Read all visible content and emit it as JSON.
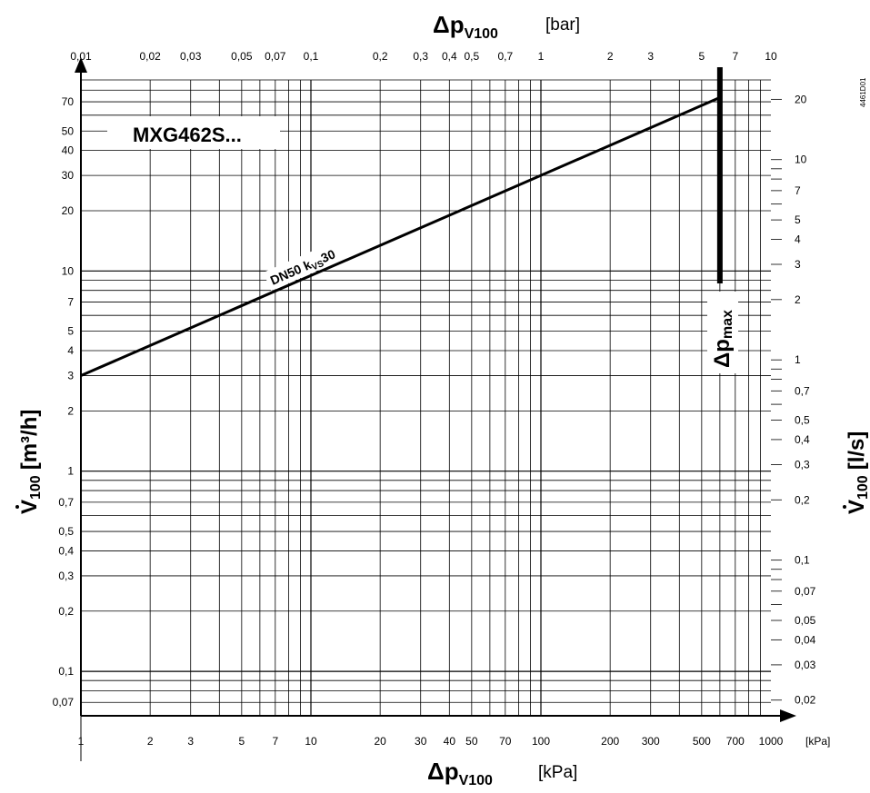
{
  "chart_data": {
    "type": "line",
    "product_label": "MXG462S...",
    "series": [
      {
        "name": "DN50 kVS30",
        "label_main": "DN50 k",
        "label_sub": "VS",
        "label_tail": "30",
        "x": [
          1,
          600
        ],
        "y": [
          3,
          73.5
        ]
      }
    ],
    "dp_max": {
      "x": 600,
      "label_main": "Δp",
      "label_sub": "max"
    },
    "x_axis_bottom": {
      "scale": "log",
      "range": [
        1,
        1000
      ],
      "symbol": "Δp",
      "subscript": "V100",
      "unit": "[kPa]",
      "tick_values": [
        1,
        2,
        3,
        5,
        7,
        10,
        20,
        30,
        40,
        50,
        70,
        100,
        200,
        300,
        500,
        700,
        1000
      ],
      "tick_labels": [
        "1",
        "2",
        "3",
        "5",
        "7",
        "10",
        "20",
        "30",
        "40",
        "50",
        "70",
        "100",
        "200",
        "300",
        "500",
        "700",
        "1000"
      ]
    },
    "x_axis_top": {
      "scale": "log",
      "range": [
        0.01,
        10
      ],
      "symbol": "Δp",
      "subscript": "V100",
      "unit": "[bar]",
      "tick_values": [
        0.01,
        0.02,
        0.03,
        0.05,
        0.07,
        0.1,
        0.2,
        0.3,
        0.4,
        0.5,
        0.7,
        1,
        2,
        3,
        5,
        7,
        10
      ],
      "tick_labels": [
        "0,01",
        "0,02",
        "0,03",
        "0,05",
        "0,07",
        "0,1",
        "0,2",
        "0,3",
        "0,4",
        "0,5",
        "0,7",
        "1",
        "2",
        "3",
        "5",
        "7",
        "10"
      ]
    },
    "y_axis_left": {
      "scale": "log",
      "range": [
        0.06,
        90
      ],
      "symbol": "V",
      "subscript": "100",
      "unit": "[m³/h]",
      "tick_values": [
        0.07,
        0.1,
        0.2,
        0.3,
        0.4,
        0.5,
        0.7,
        1,
        2,
        3,
        4,
        5,
        7,
        10,
        20,
        30,
        40,
        50,
        70
      ],
      "tick_labels": [
        "0,07",
        "0,1",
        "0,2",
        "0,3",
        "0,4",
        "0,5",
        "0,7",
        "1",
        "2",
        "3",
        "4",
        "5",
        "7",
        "10",
        "20",
        "30",
        "40",
        "50",
        "70"
      ]
    },
    "y_axis_right": {
      "scale": "log",
      "range": [
        0.0167,
        25
      ],
      "symbol": "V",
      "subscript": "100",
      "unit": "[l/s]",
      "tick_values": [
        0.02,
        0.03,
        0.04,
        0.05,
        0.07,
        0.1,
        0.2,
        0.3,
        0.4,
        0.5,
        0.7,
        1,
        2,
        3,
        4,
        5,
        7,
        10,
        20
      ],
      "tick_labels": [
        "0,02",
        "0,03",
        "0,04",
        "0,05",
        "0,07",
        "0,1",
        "0,2",
        "0,3",
        "0,4",
        "0,5",
        "0,7",
        "1",
        "2",
        "3",
        "4",
        "5",
        "7",
        "10",
        "20"
      ]
    },
    "grid": true,
    "code": "4461D01"
  }
}
